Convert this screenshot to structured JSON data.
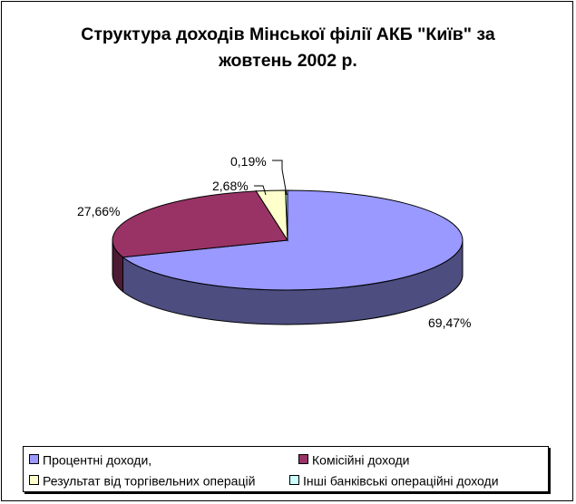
{
  "chart_data": {
    "type": "pie",
    "title_lines": [
      "Структура доходів Мінської філії АКБ \"Київ\" за",
      "жовтень 2002 р."
    ],
    "slices": [
      {
        "name": "Процентні доходи,",
        "value": 69.47,
        "label": "69,47%",
        "color": "#9999ff",
        "side_color": "#4d4d80"
      },
      {
        "name": "Комісійні доходи",
        "value": 27.66,
        "label": "27,66%",
        "color": "#993366",
        "side_color": "#4d1a33"
      },
      {
        "name": "Результат від торгівельних операцій",
        "value": 2.68,
        "label": "2,68%",
        "color": "#ffffcc",
        "side_color": "#808066"
      },
      {
        "name": "Інші банківські операційні доходи",
        "value": 0.19,
        "label": "0,19%",
        "color": "#ccffff",
        "side_color": "#668080"
      }
    ],
    "legend_position": "bottom"
  }
}
